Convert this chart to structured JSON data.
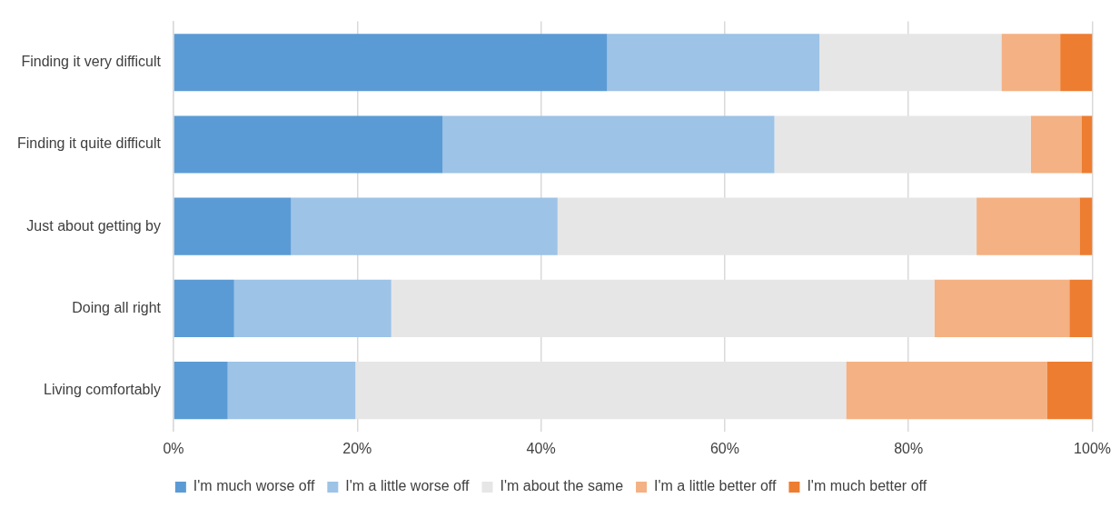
{
  "chart_data": {
    "type": "bar",
    "orientation": "horizontal",
    "stacked": true,
    "categories": [
      "Finding it very difficult",
      "Finding it quite difficult",
      "Just about getting by",
      "Doing all right",
      "Living comfortably"
    ],
    "series": [
      {
        "name": "I'm much worse off",
        "color": "#5b9bd5",
        "values": [
          47.2,
          29.3,
          12.8,
          6.6,
          5.9
        ]
      },
      {
        "name": "I'm a little worse off",
        "color": "#9dc3e6",
        "values": [
          23.1,
          36.1,
          29.0,
          17.1,
          13.9
        ]
      },
      {
        "name": "I'm about the same",
        "color": "#e7e6e6",
        "values": [
          19.8,
          27.9,
          45.6,
          59.1,
          53.4
        ]
      },
      {
        "name": "I'm a little better off",
        "color": "#f4b183",
        "values": [
          6.4,
          5.5,
          11.2,
          14.7,
          21.9
        ]
      },
      {
        "name": "I'm much better off",
        "color": "#ed7d31",
        "values": [
          3.5,
          1.2,
          1.4,
          2.5,
          4.9
        ]
      }
    ],
    "xlim": [
      0,
      100
    ],
    "xticks": [
      {
        "value": 0,
        "label": "0%"
      },
      {
        "value": 20,
        "label": "20%"
      },
      {
        "value": 40,
        "label": "40%"
      },
      {
        "value": 60,
        "label": "60%"
      },
      {
        "value": 80,
        "label": "80%"
      },
      {
        "value": 100,
        "label": "100%"
      }
    ],
    "grid": "x",
    "legend": "bottom"
  }
}
